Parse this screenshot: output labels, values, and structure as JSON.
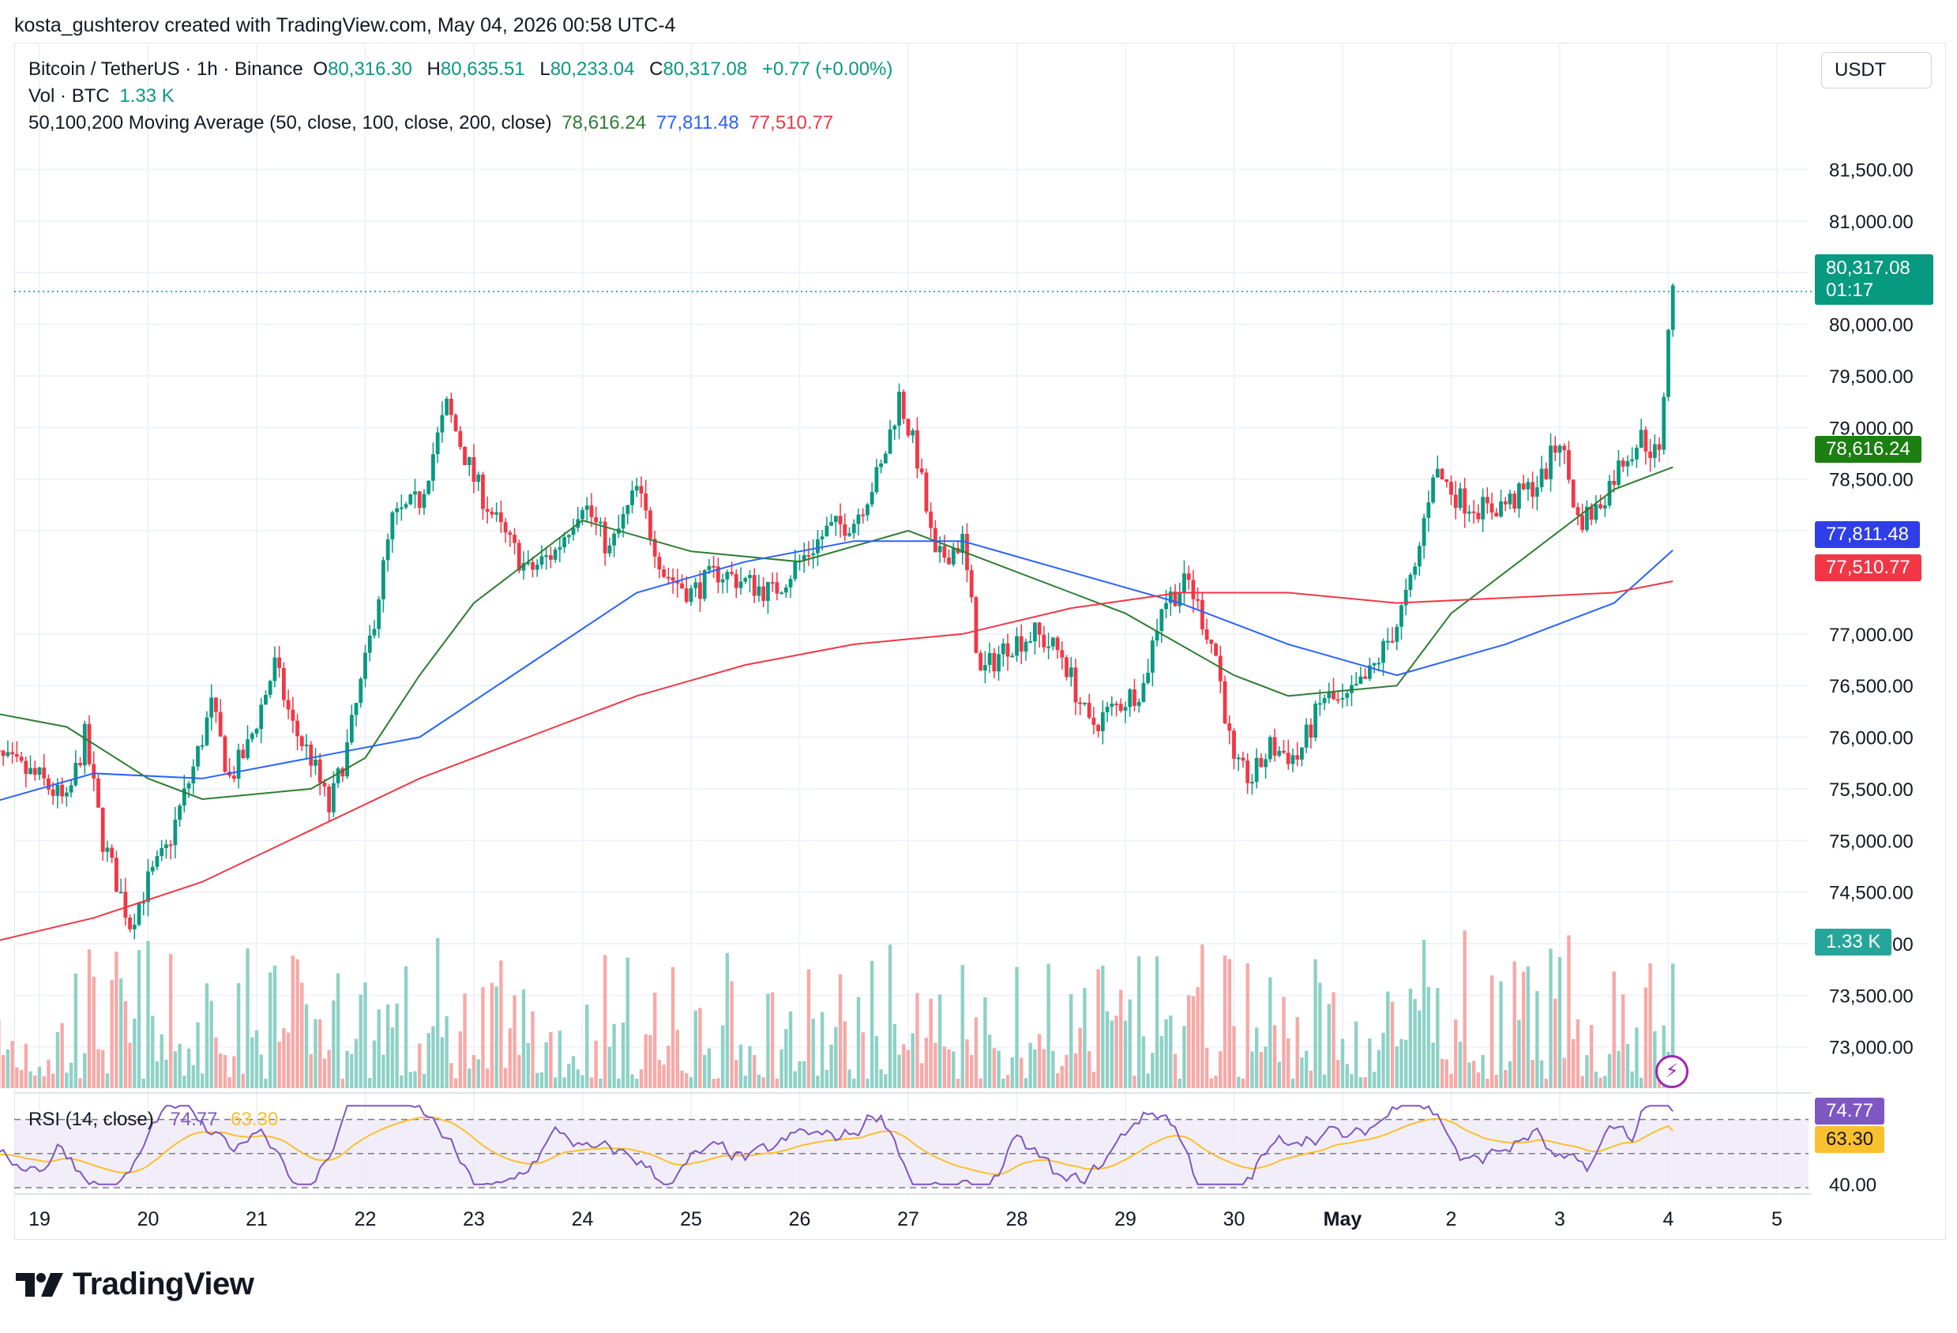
{
  "header": {
    "credit": "kosta_gushterov created with TradingView.com, May 04, 2026 00:58 UTC-4"
  },
  "legend": {
    "symbol": "Bitcoin / TetherUS · 1h · Binance",
    "o_label": "O",
    "o_value": "80,316.30",
    "h_label": "H",
    "h_value": "80,635.51",
    "l_label": "L",
    "l_value": "80,233.04",
    "c_label": "C",
    "c_value": "80,317.08",
    "change": "+0.77 (+0.00%)",
    "vol_label": "Vol · BTC",
    "vol_value": "1.33 K",
    "ma_label": "50,100,200 Moving Average (50, close, 100, close, 200, close)",
    "ma50_value": "78,616.24",
    "ma100_value": "77,811.48",
    "ma200_value": "77,510.77"
  },
  "currency": "USDT",
  "price_tag": {
    "price": "80,317.08",
    "countdown": "01:17"
  },
  "volume_tag": "1.33 K",
  "rsi": {
    "label": "RSI (14, close)",
    "value": "74.77",
    "ma_value": "63.30",
    "level_label": "40.00"
  },
  "colors": {
    "up": "#089981",
    "down": "#f23645",
    "ma50": "#2e7d32",
    "ma100": "#2962ff",
    "ma200": "#f23645",
    "rsi": "#7e57c2",
    "rsi_ma": "#fbc02d",
    "grid": "#f0f3fa"
  },
  "logo": {
    "text": "TradingView"
  },
  "chart_data": {
    "type": "candlestick",
    "y_axis": {
      "ticks": [
        "81,500.00",
        "81,000.00",
        "80,500.00",
        "80,000.00",
        "79,500.00",
        "79,000.00",
        "78,500.00",
        "78,000.00",
        "77,000.00",
        "76,500.00",
        "76,000.00",
        "75,500.00",
        "75,000.00",
        "74,500.00",
        "74,000.00",
        "73,500.00",
        "73,000.00"
      ],
      "tick_values": [
        81500,
        81000,
        80500,
        80000,
        79500,
        79000,
        78500,
        78000,
        77000,
        76500,
        76000,
        75500,
        75000,
        74500,
        74000,
        73500,
        73000
      ],
      "range": [
        72600,
        82300
      ]
    },
    "x_axis": {
      "ticks": [
        "19",
        "20",
        "21",
        "22",
        "23",
        "24",
        "25",
        "26",
        "27",
        "28",
        "29",
        "30",
        "May",
        "2",
        "3",
        "4",
        "5"
      ]
    },
    "price_path": [
      [
        "Apr 18 12:00",
        75850
      ],
      [
        "Apr 19 00:00",
        75600
      ],
      [
        "Apr 19 06:00",
        75350
      ],
      [
        "Apr 19 10:00",
        76000
      ],
      [
        "Apr 19 14:00",
        75000
      ],
      [
        "Apr 19 20:00",
        74200
      ],
      [
        "Apr 20 00:00",
        74600
      ],
      [
        "Apr 20 04:00",
        74900
      ],
      [
        "Apr 20 10:00",
        75700
      ],
      [
        "Apr 20 14:00",
        76300
      ],
      [
        "Apr 20 18:00",
        75600
      ],
      [
        "Apr 20 22:00",
        75900
      ],
      [
        "Apr 21 04:00",
        76700
      ],
      [
        "Apr 21 08:00",
        76100
      ],
      [
        "Apr 21 12:00",
        75800
      ],
      [
        "Apr 21 16:00",
        75300
      ],
      [
        "Apr 21 20:00",
        75900
      ],
      [
        "Apr 22 00:00",
        76700
      ],
      [
        "Apr 22 06:00",
        78100
      ],
      [
        "Apr 22 12:00",
        78300
      ],
      [
        "Apr 22 18:00",
        79200
      ],
      [
        "Apr 23 00:00",
        78500
      ],
      [
        "Apr 23 06:00",
        78000
      ],
      [
        "Apr 23 12:00",
        77600
      ],
      [
        "Apr 23 18:00",
        77800
      ],
      [
        "Apr 24 00:00",
        78300
      ],
      [
        "Apr 24 06:00",
        77800
      ],
      [
        "Apr 24 12:00",
        78400
      ],
      [
        "Apr 24 18:00",
        77600
      ],
      [
        "Apr 25 00:00",
        77400
      ],
      [
        "Apr 25 06:00",
        77600
      ],
      [
        "Apr 25 12:00",
        77500
      ],
      [
        "Apr 25 18:00",
        77400
      ],
      [
        "Apr 26 00:00",
        77700
      ],
      [
        "Apr 26 06:00",
        78000
      ],
      [
        "Apr 26 12:00",
        78100
      ],
      [
        "Apr 26 18:00",
        78600
      ],
      [
        "Apr 26 22:00",
        79300
      ],
      [
        "Apr 27 02:00",
        78700
      ],
      [
        "Apr 27 06:00",
        77700
      ],
      [
        "Apr 27 12:00",
        77900
      ],
      [
        "Apr 27 16:00",
        76600
      ],
      [
        "Apr 27 22:00",
        76900
      ],
      [
        "Apr 28 04:00",
        77000
      ],
      [
        "Apr 28 10:00",
        76800
      ],
      [
        "Apr 28 16:00",
        76100
      ],
      [
        "Apr 28 22:00",
        76300
      ],
      [
        "Apr 29 04:00",
        76500
      ],
      [
        "Apr 29 08:00",
        77300
      ],
      [
        "Apr 29 14:00",
        77500
      ],
      [
        "Apr 29 20:00",
        76800
      ],
      [
        "Apr 30 00:00",
        75700
      ],
      [
        "Apr 30 04:00",
        75600
      ],
      [
        "Apr 30 08:00",
        75900
      ],
      [
        "Apr 30 14:00",
        75800
      ],
      [
        "Apr 30 20:00",
        76400
      ],
      [
        "May 1 00:00",
        76300
      ],
      [
        "May 1 06:00",
        76600
      ],
      [
        "May 1 12:00",
        77100
      ],
      [
        "May 1 16:00",
        77600
      ],
      [
        "May 1 20:00",
        78600
      ],
      [
        "May 2 02:00",
        78300
      ],
      [
        "May 2 08:00",
        78200
      ],
      [
        "May 2 14:00",
        78300
      ],
      [
        "May 2 20:00",
        78500
      ],
      [
        "May 3 00:00",
        78900
      ],
      [
        "May 3 04:00",
        78100
      ],
      [
        "May 3 08:00",
        78200
      ],
      [
        "May 3 14:00",
        78700
      ],
      [
        "May 3 18:00",
        78900
      ],
      [
        "May 3 22:00",
        78700
      ],
      [
        "May 4 00:00",
        80000
      ],
      [
        "May 4 01:00",
        80317
      ]
    ],
    "ma50_path": [
      [
        "Apr 18 12:00",
        76250
      ],
      [
        "Apr 19 06:00",
        76100
      ],
      [
        "Apr 20 00:00",
        75600
      ],
      [
        "Apr 20 12:00",
        75400
      ],
      [
        "Apr 21 12:00",
        75500
      ],
      [
        "Apr 22 00:00",
        75800
      ],
      [
        "Apr 22 12:00",
        76600
      ],
      [
        "Apr 23 00:00",
        77300
      ],
      [
        "Apr 24 00:00",
        78100
      ],
      [
        "Apr 25 00:00",
        77800
      ],
      [
        "Apr 26 00:00",
        77700
      ],
      [
        "Apr 27 00:00",
        78000
      ],
      [
        "Apr 27 12:00",
        77800
      ],
      [
        "Apr 28 12:00",
        77400
      ],
      [
        "Apr 29 00:00",
        77200
      ],
      [
        "Apr 30 00:00",
        76600
      ],
      [
        "Apr 30 12:00",
        76400
      ],
      [
        "May 1 12:00",
        76500
      ],
      [
        "May 2 00:00",
        77200
      ],
      [
        "May 3 00:00",
        78000
      ],
      [
        "May 3 12:00",
        78400
      ],
      [
        "May 4 01:00",
        78616
      ]
    ],
    "ma100_path": [
      [
        "Apr 18 12:00",
        75350
      ],
      [
        "Apr 19 12:00",
        75650
      ],
      [
        "Apr 20 12:00",
        75600
      ],
      [
        "Apr 21 12:00",
        75800
      ],
      [
        "Apr 22 12:00",
        76000
      ],
      [
        "Apr 23 12:00",
        76700
      ],
      [
        "Apr 24 12:00",
        77400
      ],
      [
        "Apr 25 12:00",
        77700
      ],
      [
        "Apr 26 12:00",
        77900
      ],
      [
        "Apr 27 12:00",
        77900
      ],
      [
        "Apr 28 12:00",
        77600
      ],
      [
        "Apr 29 12:00",
        77300
      ],
      [
        "Apr 30 12:00",
        76900
      ],
      [
        "May 1 12:00",
        76600
      ],
      [
        "May 2 12:00",
        76900
      ],
      [
        "May 3 12:00",
        77300
      ],
      [
        "May 4 01:00",
        77811
      ]
    ],
    "ma200_path": [
      [
        "Apr 18 12:00",
        74000
      ],
      [
        "Apr 19 12:00",
        74250
      ],
      [
        "Apr 20 12:00",
        74600
      ],
      [
        "Apr 21 12:00",
        75100
      ],
      [
        "Apr 22 12:00",
        75600
      ],
      [
        "Apr 23 12:00",
        76000
      ],
      [
        "Apr 24 12:00",
        76400
      ],
      [
        "Apr 25 12:00",
        76700
      ],
      [
        "Apr 26 12:00",
        76900
      ],
      [
        "Apr 27 12:00",
        77000
      ],
      [
        "Apr 28 12:00",
        77250
      ],
      [
        "Apr 29 12:00",
        77400
      ],
      [
        "Apr 30 12:00",
        77400
      ],
      [
        "May 1 12:00",
        77300
      ],
      [
        "May 2 12:00",
        77350
      ],
      [
        "May 3 12:00",
        77400
      ],
      [
        "May 4 01:00",
        77511
      ]
    ],
    "rsi_range": [
      30,
      80
    ]
  }
}
